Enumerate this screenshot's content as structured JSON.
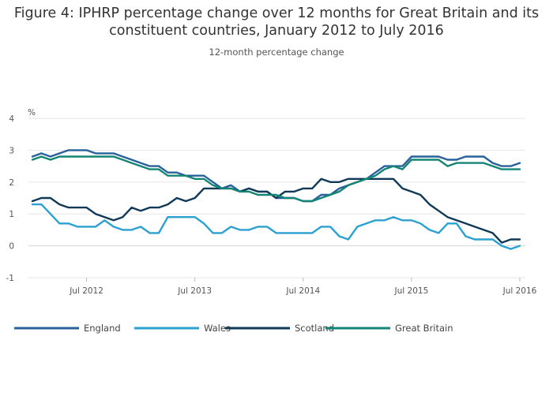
{
  "chart_data": {
    "type": "line",
    "title": "Figure 4: IPHRP percentage change over 12 months for Great Britain and its constituent countries, January 2012 to July 2016",
    "subtitle": "12-month percentage change",
    "ylabel": "%",
    "ylim": [
      -1,
      4
    ],
    "yticks": [
      4,
      3,
      2,
      1,
      0,
      -1
    ],
    "xrange": [
      "2012-01",
      "2016-07"
    ],
    "xticks": [
      {
        "month": "2012-07",
        "label": "Jul 2012"
      },
      {
        "month": "2013-07",
        "label": "Jul 2013"
      },
      {
        "month": "2014-07",
        "label": "Jul 2014"
      },
      {
        "month": "2015-07",
        "label": "Jul 2015"
      },
      {
        "month": "2016-07",
        "label": "Jul 2016"
      }
    ],
    "grid": true,
    "legend_position": "bottom",
    "series": [
      {
        "name": "England",
        "color": "#27609b",
        "values": [
          2.8,
          2.9,
          2.8,
          2.9,
          3.0,
          3.0,
          3.0,
          2.9,
          2.9,
          2.9,
          2.8,
          2.7,
          2.6,
          2.5,
          2.5,
          2.3,
          2.3,
          2.2,
          2.2,
          2.2,
          2.0,
          1.8,
          1.9,
          1.7,
          1.8,
          1.7,
          1.7,
          1.5,
          1.5,
          1.5,
          1.4,
          1.4,
          1.6,
          1.6,
          1.8,
          1.9,
          2.0,
          2.1,
          2.3,
          2.5,
          2.5,
          2.5,
          2.8,
          2.8,
          2.8,
          2.8,
          2.7,
          2.7,
          2.8,
          2.8,
          2.8,
          2.6,
          2.5,
          2.5,
          2.6
        ]
      },
      {
        "name": "Wales",
        "color": "#2aa1d0",
        "values": [
          1.3,
          1.3,
          1.0,
          0.7,
          0.7,
          0.6,
          0.6,
          0.6,
          0.8,
          0.6,
          0.5,
          0.5,
          0.6,
          0.4,
          0.4,
          0.9,
          0.9,
          0.9,
          0.9,
          0.7,
          0.4,
          0.4,
          0.6,
          0.5,
          0.5,
          0.6,
          0.6,
          0.4,
          0.4,
          0.4,
          0.4,
          0.4,
          0.6,
          0.6,
          0.3,
          0.2,
          0.6,
          0.7,
          0.8,
          0.8,
          0.9,
          0.8,
          0.8,
          0.7,
          0.5,
          0.4,
          0.7,
          0.7,
          0.3,
          0.2,
          0.2,
          0.2,
          0.0,
          -0.1,
          0.0
        ]
      },
      {
        "name": "Scotland",
        "color": "#0f3957",
        "values": [
          1.4,
          1.5,
          1.5,
          1.3,
          1.2,
          1.2,
          1.2,
          1.0,
          0.9,
          0.8,
          0.9,
          1.2,
          1.1,
          1.2,
          1.2,
          1.3,
          1.5,
          1.4,
          1.5,
          1.8,
          1.8,
          1.8,
          1.8,
          1.7,
          1.8,
          1.7,
          1.7,
          1.5,
          1.7,
          1.7,
          1.8,
          1.8,
          2.1,
          2.0,
          2.0,
          2.1,
          2.1,
          2.1,
          2.1,
          2.1,
          2.1,
          1.8,
          1.7,
          1.6,
          1.3,
          1.1,
          0.9,
          0.8,
          0.7,
          0.6,
          0.5,
          0.4,
          0.1,
          0.2,
          0.2
        ]
      },
      {
        "name": "Great Britain",
        "color": "#148574",
        "values": [
          2.7,
          2.8,
          2.7,
          2.8,
          2.8,
          2.8,
          2.8,
          2.8,
          2.8,
          2.8,
          2.7,
          2.6,
          2.5,
          2.4,
          2.4,
          2.2,
          2.2,
          2.2,
          2.1,
          2.1,
          1.9,
          1.8,
          1.8,
          1.7,
          1.7,
          1.6,
          1.6,
          1.6,
          1.5,
          1.5,
          1.4,
          1.4,
          1.5,
          1.6,
          1.7,
          1.9,
          2.0,
          2.1,
          2.2,
          2.4,
          2.5,
          2.4,
          2.7,
          2.7,
          2.7,
          2.7,
          2.5,
          2.6,
          2.6,
          2.6,
          2.6,
          2.5,
          2.4,
          2.4,
          2.4
        ]
      }
    ]
  }
}
